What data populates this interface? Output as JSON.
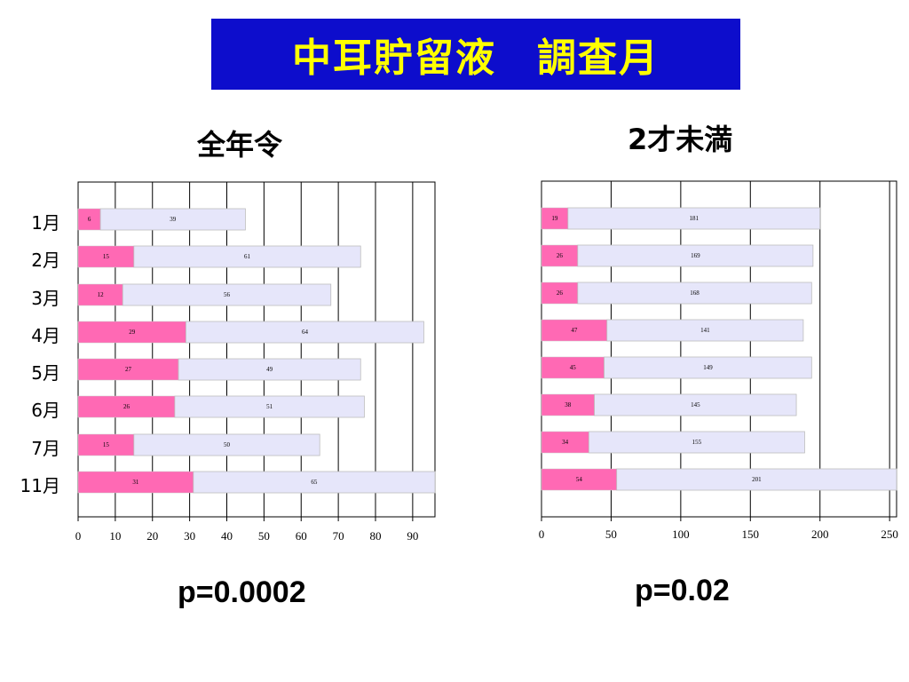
{
  "title": "中耳貯留液　調査月",
  "p_values": [
    "p=0.0002",
    "p=0.02"
  ],
  "colors": {
    "title_bg": "#0d0dcc",
    "title_text": "#ffff00",
    "series_pink": "#ff69b4",
    "series_lavender": "#e6e6fa"
  },
  "chart_data": [
    {
      "type": "bar",
      "orientation": "horizontal",
      "stacked": true,
      "title": "全年令",
      "categories": [
        "1月",
        "2月",
        "3月",
        "4月",
        "5月",
        "6月",
        "7月",
        "11月"
      ],
      "series": [
        {
          "values": [
            6,
            15,
            12,
            29,
            27,
            26,
            15,
            31
          ]
        },
        {
          "values": [
            39,
            61,
            56,
            64,
            49,
            51,
            50,
            65
          ]
        }
      ],
      "xlim": [
        0,
        96
      ],
      "xticks": [
        0,
        10,
        20,
        30,
        40,
        50,
        60,
        70,
        80,
        90
      ],
      "grid": true
    },
    {
      "type": "bar",
      "orientation": "horizontal",
      "stacked": true,
      "title": "2才未満",
      "categories": [
        "1月",
        "2月",
        "3月",
        "4月",
        "5月",
        "6月",
        "7月",
        "11月"
      ],
      "series": [
        {
          "values": [
            19,
            26,
            26,
            47,
            45,
            38,
            34,
            54
          ]
        },
        {
          "values": [
            181,
            169,
            168,
            141,
            149,
            145,
            155,
            201
          ]
        }
      ],
      "xlim": [
        0,
        255
      ],
      "xticks": [
        0,
        50,
        100,
        150,
        200,
        250
      ],
      "grid": true
    }
  ]
}
